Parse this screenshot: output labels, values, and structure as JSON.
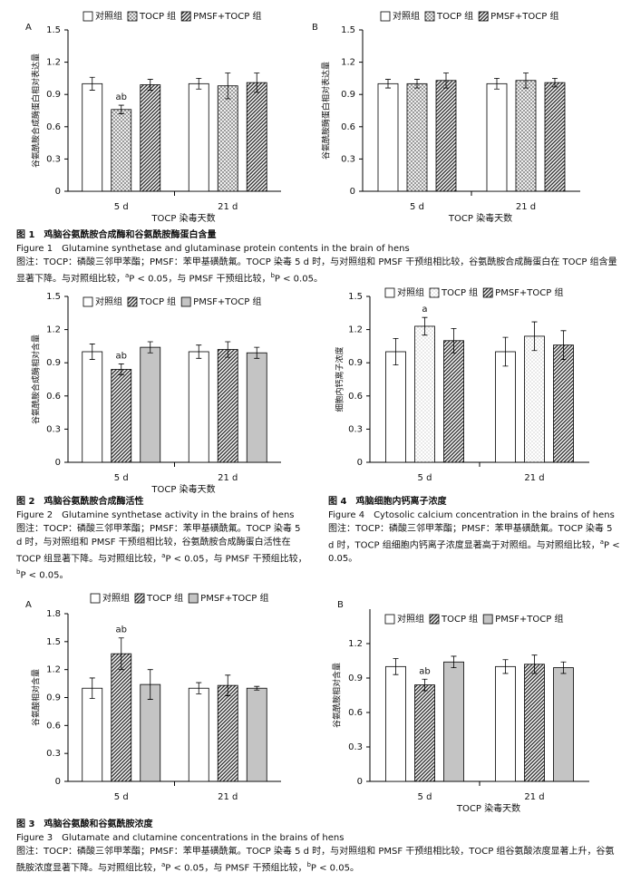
{
  "chart_data": [
    {
      "type": "bar",
      "panel": "A",
      "y_label": "谷氨酰胺合成酶蛋白相对表达量",
      "x_label": "TOCP 染毒天数",
      "categories": [
        "5 d",
        "21 d"
      ],
      "ylim": [
        0,
        1.5
      ],
      "yticks": [
        0,
        0.3,
        0.6,
        0.9,
        1.2,
        1.5
      ],
      "series": [
        {
          "name": "对照组",
          "color": "#ffffff",
          "pattern": "solid",
          "values": [
            1.0,
            1.0
          ],
          "errors": [
            0.06,
            0.05
          ]
        },
        {
          "name": "TOCP 组",
          "color": "#777777",
          "pattern": "crosshatch",
          "values": [
            0.76,
            0.98
          ],
          "errors": [
            0.04,
            0.12
          ],
          "annotations": [
            "ab",
            null
          ]
        },
        {
          "name": "PMSF+TOCP 组",
          "color": "#333333",
          "pattern": "diagonal",
          "values": [
            0.99,
            1.01
          ],
          "errors": [
            0.05,
            0.09
          ]
        }
      ]
    },
    {
      "type": "bar",
      "panel": "B",
      "y_label": "谷氨酰胺酶蛋白相对表达量",
      "x_label": "TOCP 染毒天数",
      "categories": [
        "5 d",
        "21 d"
      ],
      "ylim": [
        0,
        1.5
      ],
      "yticks": [
        0,
        0.3,
        0.6,
        0.9,
        1.2,
        1.5
      ],
      "series": [
        {
          "name": "对照组",
          "color": "#ffffff",
          "pattern": "solid",
          "values": [
            1.0,
            1.0
          ],
          "errors": [
            0.04,
            0.05
          ]
        },
        {
          "name": "TOCP 组",
          "color": "#777777",
          "pattern": "crosshatch",
          "values": [
            1.0,
            1.03
          ],
          "errors": [
            0.04,
            0.07
          ]
        },
        {
          "name": "PMSF+TOCP 组",
          "color": "#333333",
          "pattern": "diagonal",
          "values": [
            1.03,
            1.01
          ],
          "errors": [
            0.07,
            0.04
          ]
        }
      ]
    },
    {
      "type": "bar",
      "y_label": "谷氨酰胺合成酶相对含量",
      "x_label": "TOCP 染毒天数",
      "categories": [
        "5 d",
        "21 d"
      ],
      "ylim": [
        0,
        1.5
      ],
      "yticks": [
        0,
        0.3,
        0.6,
        0.9,
        1.2,
        1.5
      ],
      "series": [
        {
          "name": "对照组",
          "color": "#ffffff",
          "pattern": "solid",
          "values": [
            1.0,
            1.0
          ],
          "errors": [
            0.07,
            0.06
          ]
        },
        {
          "name": "TOCP 组",
          "color": "#333333",
          "pattern": "diagonal",
          "values": [
            0.84,
            1.02
          ],
          "errors": [
            0.05,
            0.07
          ],
          "annotations": [
            "ab",
            null
          ]
        },
        {
          "name": "PMSF+TOCP 组",
          "color": "#c4c4c4",
          "pattern": "solid",
          "values": [
            1.04,
            0.99
          ],
          "errors": [
            0.05,
            0.05
          ]
        }
      ]
    },
    {
      "type": "bar",
      "y_label": "细胞内钙离子浓度",
      "x_label": null,
      "categories": [
        "5 d",
        "21 d"
      ],
      "ylim": [
        0,
        1.5
      ],
      "yticks": [
        0,
        0.3,
        0.6,
        0.9,
        1.2,
        1.5
      ],
      "series": [
        {
          "name": "对照组",
          "color": "#ffffff",
          "pattern": "solid",
          "values": [
            1.0,
            1.0
          ],
          "errors": [
            0.12,
            0.13
          ]
        },
        {
          "name": "TOCP 组",
          "color": "#888888",
          "pattern": "dots",
          "values": [
            1.23,
            1.14
          ],
          "errors": [
            0.08,
            0.13
          ],
          "annotations": [
            "a",
            null
          ]
        },
        {
          "name": "PMSF+TOCP 组",
          "color": "#333333",
          "pattern": "diagonal",
          "values": [
            1.1,
            1.06
          ],
          "errors": [
            0.11,
            0.13
          ]
        }
      ]
    },
    {
      "type": "bar",
      "panel": "A",
      "y_label": "谷氨酸相对含量",
      "x_label": null,
      "categories": [
        "5 d",
        "21 d"
      ],
      "ylim": [
        0,
        1.8
      ],
      "yticks": [
        0,
        0.3,
        0.6,
        0.9,
        1.2,
        1.5,
        1.8
      ],
      "series": [
        {
          "name": "对照组",
          "color": "#ffffff",
          "pattern": "solid",
          "values": [
            1.0,
            1.0
          ],
          "errors": [
            0.11,
            0.06
          ]
        },
        {
          "name": "TOCP 组",
          "color": "#333333",
          "pattern": "diagonal",
          "values": [
            1.37,
            1.03
          ],
          "errors": [
            0.17,
            0.11
          ],
          "annotations": [
            "ab",
            null
          ]
        },
        {
          "name": "PMSF+TOCP 组",
          "color": "#c4c4c4",
          "pattern": "solid",
          "values": [
            1.04,
            1.0
          ],
          "errors": [
            0.16,
            0.02
          ]
        }
      ]
    },
    {
      "type": "bar",
      "panel": "B",
      "y_label": "谷氨酰胺相对含量",
      "x_label": "TOCP 染毒天数",
      "categories": [
        "5 d",
        "21 d"
      ],
      "ylim": [
        0,
        1.5
      ],
      "yticks": [
        0,
        0.3,
        0.6,
        0.9,
        1.2
      ],
      "series": [
        {
          "name": "对照组",
          "color": "#ffffff",
          "pattern": "solid",
          "values": [
            1.0,
            1.0
          ],
          "errors": [
            0.07,
            0.06
          ]
        },
        {
          "name": "TOCP 组",
          "color": "#333333",
          "pattern": "diagonal",
          "values": [
            0.84,
            1.02
          ],
          "errors": [
            0.05,
            0.08
          ],
          "annotations": [
            "ab",
            null
          ]
        },
        {
          "name": "PMSF+TOCP 组",
          "color": "#c4c4c4",
          "pattern": "solid",
          "values": [
            1.04,
            0.99
          ],
          "errors": [
            0.05,
            0.05
          ]
        }
      ]
    }
  ],
  "figures": [
    {
      "title_cn": "图 1　鸡脑谷氨酰胺合成酶和谷氨酰胺酶蛋白含量",
      "title_en": "Figure 1　Glutamine synthetase and glutaminase protein contents in the brain of hens",
      "note": [
        "图注：TOCP：磷酸三邻甲苯酯；PMSF：苯甲基磺酰氟。TOCP 染毒 5 d 时，与对照组和 PMSF 干预组相比较，谷氨酰胺合成酶蛋白在 TOCP 组含量显著下降。与对照组比较，",
        "a",
        "P < 0.05，与 PMSF 干预组比较，",
        "b",
        "P < 0.05。"
      ]
    },
    {
      "title_cn": "图 2　鸡脑谷氨酰胺合成酶活性",
      "title_en": "Figure 2　Glutamine synthetase activity in the brains of hens",
      "note": [
        "图注：TOCP：磷酸三邻甲苯酯；PMSF：苯甲基磺酰氟。TOCP 染毒 5 d 时，与对照组和 PMSF 干预组相比较，谷氨酰胺合成酶蛋白活性在 TOCP 组显著下降。与对照组比较，",
        "a",
        "P < 0.05，与 PMSF 干预组比较，",
        "b",
        "P < 0.05。"
      ]
    },
    {
      "title_cn": "图 4　鸡脑细胞内钙离子浓度",
      "title_en": "Figure 4　Cytosolic calcium concentration in the brains of hens",
      "note": [
        "图注：TOCP：磷酸三邻甲苯酯；PMSF：苯甲基磺酰氟。TOCP 染毒 5 d 时，TOCP 组细胞内钙离子浓度显著高于对照组。与对照组比较，",
        "a",
        "P < 0.05。"
      ]
    },
    {
      "title_cn": "图 3　鸡脑谷氨酸和谷氨酰胺浓度",
      "title_en": "Figure 3　Glutamate and clutamine concentrations in the brains of hens",
      "note": [
        "图注：TOCP：磷酸三邻甲苯酯；PMSF：苯甲基磺酰氟。TOCP 染毒 5 d 时，与对照组和 PMSF 干预组相比较，TOCP 组谷氨酸浓度显著上升，谷氨酰胺浓度显著下降。与对照组比较，",
        "a",
        "P < 0.05，与 PMSF 干预组比较，",
        "b",
        "P < 0.05。"
      ]
    }
  ]
}
